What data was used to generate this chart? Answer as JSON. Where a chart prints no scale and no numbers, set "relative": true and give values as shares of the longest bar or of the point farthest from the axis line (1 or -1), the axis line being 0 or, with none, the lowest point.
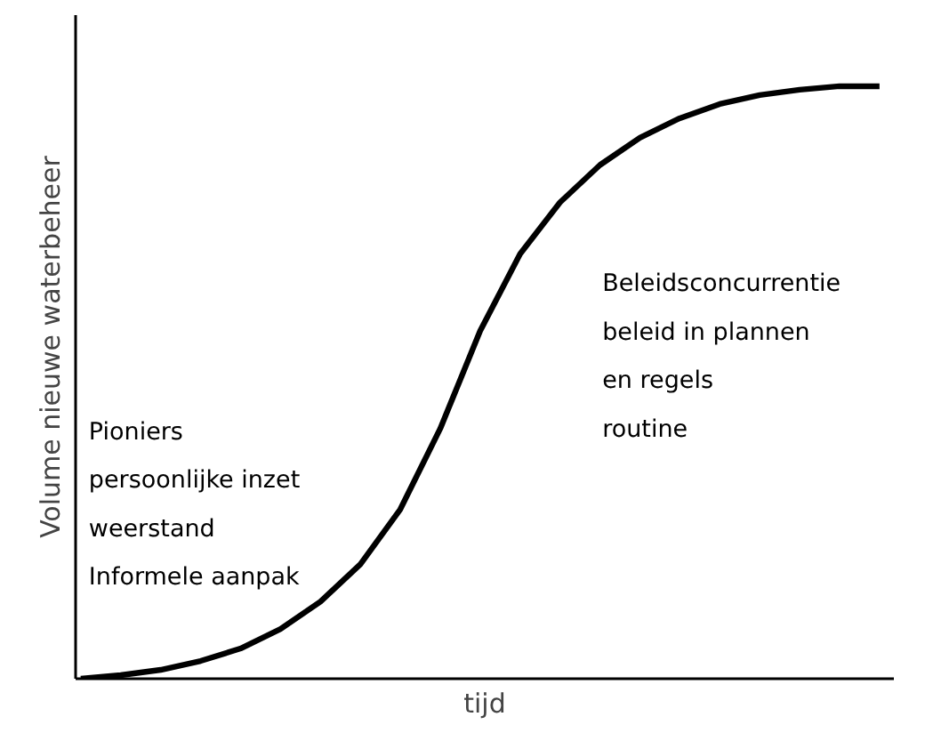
{
  "chart_data": {
    "type": "line",
    "relative": true,
    "xlabel": "tijd",
    "ylabel": "Volume nieuwe waterbeheer",
    "categories": [
      null,
      null,
      null,
      null,
      null,
      null,
      null,
      null,
      null,
      null,
      null,
      null,
      null,
      null,
      null,
      null,
      null,
      null,
      null,
      null,
      null
    ],
    "series": [
      {
        "color": "#000000",
        "values": [
          0,
          0.006,
          0.015,
          0.03,
          0.051,
          0.084,
          0.13,
          0.193,
          0.286,
          0.422,
          0.587,
          0.717,
          0.804,
          0.867,
          0.913,
          0.946,
          0.97,
          0.985,
          0.994,
          1,
          1
        ]
      }
    ],
    "annotations": [
      "Pioniers\npersoonlijke inzet\nweerstand\nInformele aanpak",
      "Beleidsconcurrentie\nbeleid in plannen\nen regels\nroutine"
    ],
    "marker": "none",
    "line_style": "solid",
    "tick_labels": false
  }
}
